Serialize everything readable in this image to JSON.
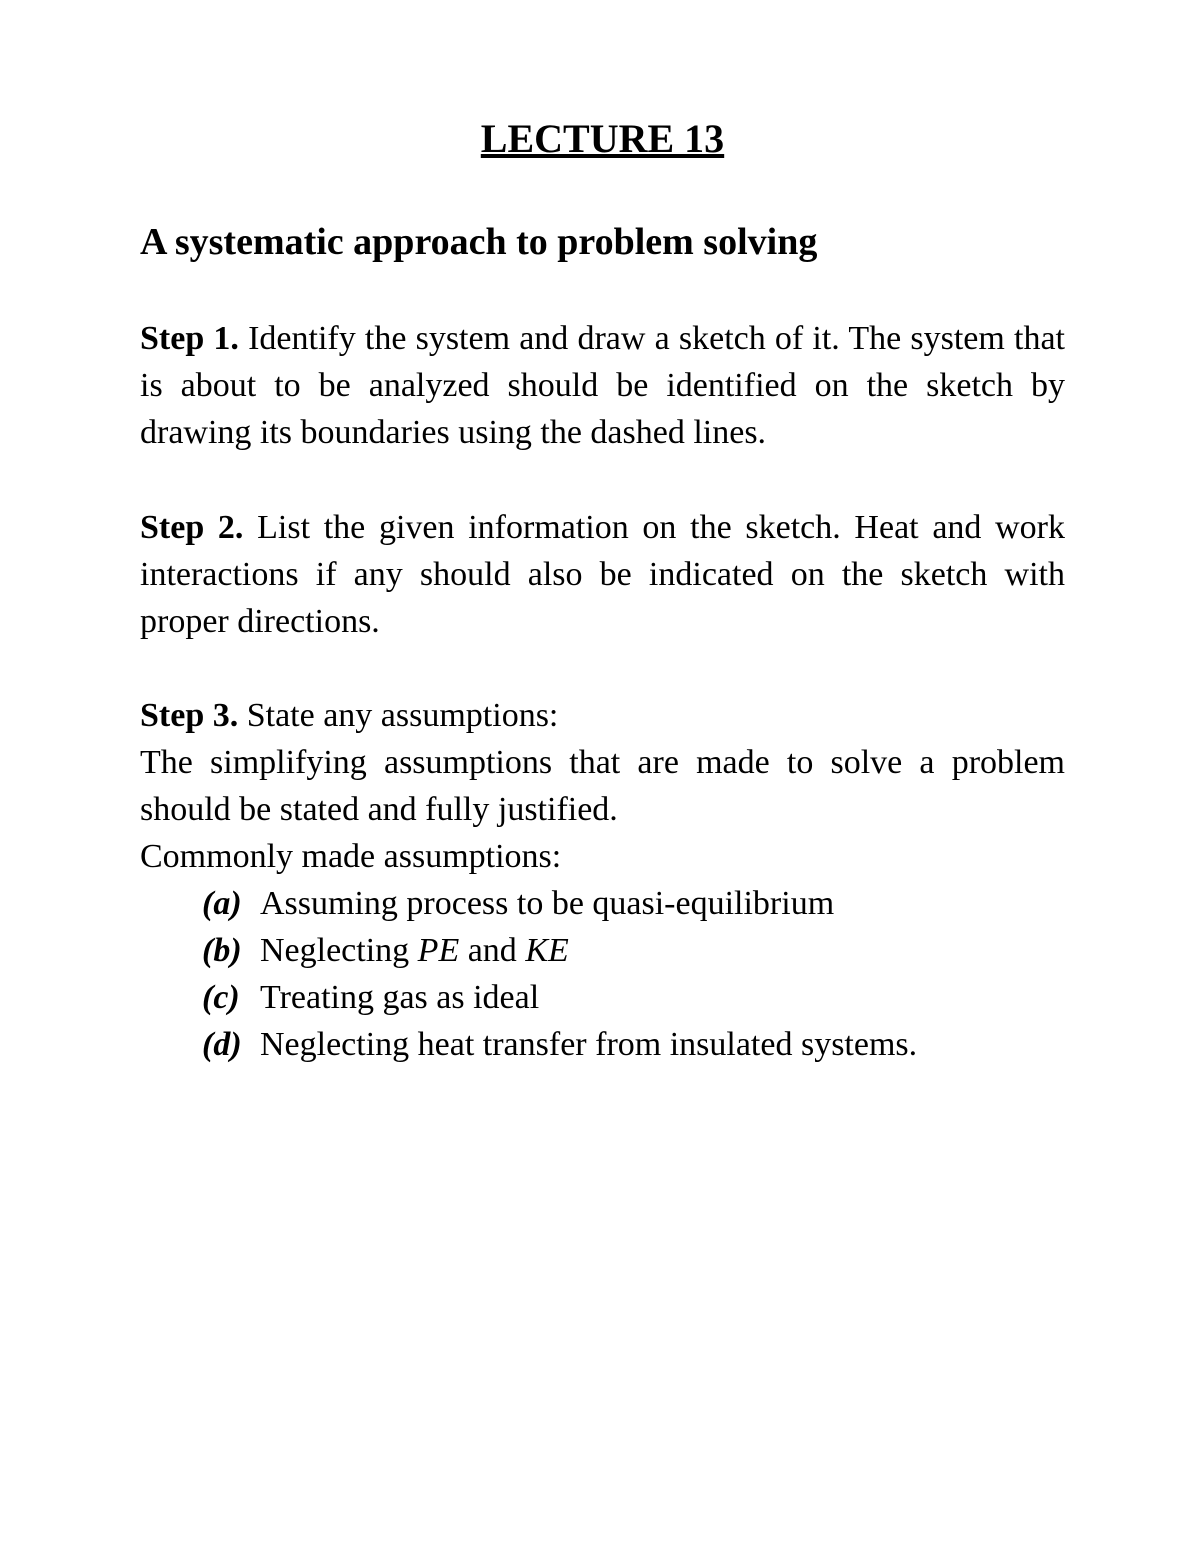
{
  "title": "LECTURE 13",
  "subtitle": "A systematic approach to problem solving",
  "steps": {
    "step1": {
      "label": "Step 1.",
      "text": " Identify the system and draw a sketch of it. The system that is about to be analyzed should be identified on the sketch by drawing its boundaries using the dashed lines."
    },
    "step2": {
      "label": "Step 2.",
      "text": " List the given information on the sketch. Heat and work interactions if any should also be indicated on the sketch with proper directions."
    },
    "step3": {
      "label": "Step 3.",
      "intro": "  State any assumptions:",
      "body": "The simplifying assumptions that are made to solve a problem should be stated and fully justified.",
      "listIntro": "Commonly made assumptions:",
      "items": {
        "a": {
          "label": "(a)",
          "text": "Assuming process to be quasi-equilibrium"
        },
        "b": {
          "label": "(b)",
          "prefix": "Neglecting ",
          "italic1": "PE",
          "mid": " and ",
          "italic2": "KE"
        },
        "c": {
          "label": "(c)",
          "text": "Treating gas as ideal"
        },
        "d": {
          "label": "(d)",
          "text": "Neglecting heat transfer from insulated systems."
        }
      }
    }
  }
}
